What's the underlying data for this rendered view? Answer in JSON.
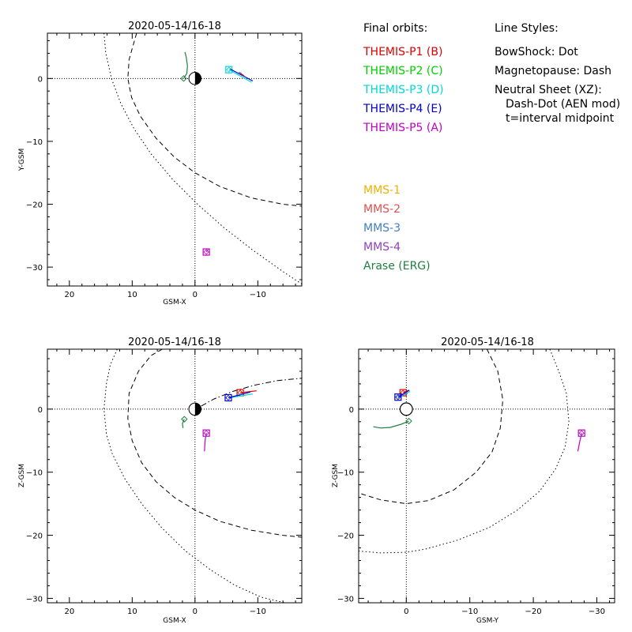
{
  "chart_data": [
    {
      "type": "line",
      "title": "2020-05-14/16-18",
      "xlabel": "GSM-X",
      "ylabel": "Y-GSM",
      "xlim": [
        23.5,
        -17
      ],
      "ylim": [
        -33,
        7.2
      ],
      "xticks": [
        20,
        10,
        0,
        -10
      ],
      "yticks": [
        -30,
        -20,
        -10,
        0
      ],
      "reference_lines": {
        "x": 0,
        "y": 0
      },
      "earth": {
        "x": 0,
        "y": 0,
        "r": 1,
        "night_side": "positive-x"
      },
      "curves": [
        {
          "name": "BowShock",
          "style": "dot",
          "x": [
            14.5,
            14.2,
            13.3,
            11.8,
            9.7,
            7.0,
            3.6,
            -0.4,
            -4.7,
            -9.2,
            -14.0,
            -17.0
          ],
          "y": [
            7.2,
            4.0,
            0,
            -4.0,
            -8.0,
            -12.0,
            -16.0,
            -20.0,
            -23.8,
            -27.3,
            -30.7,
            -32.7
          ]
        },
        {
          "name": "Magnetopause",
          "style": "dash",
          "x": [
            9.3,
            10.5,
            10.7,
            10.1,
            8.7,
            6.2,
            3.3,
            0,
            -4.0,
            -9.0,
            -14.0,
            -17.0
          ],
          "y": [
            7.2,
            3.0,
            0,
            -3.0,
            -6.0,
            -9.5,
            -12.5,
            -15.0,
            -17.2,
            -19.0,
            -20.0,
            -20.3
          ]
        }
      ],
      "series": [
        {
          "name": "THEMIS-P5 (A)",
          "color": "#c000c0",
          "x": [
            -1.8,
            -2.1
          ],
          "y": [
            -27.6,
            -27.2
          ],
          "marker_end": true
        },
        {
          "name": "THEMIS-P3 (D)",
          "color": "#00d8d8",
          "x": [
            -5.4,
            -9.0
          ],
          "y": [
            1.4,
            -0.6
          ],
          "marker_end": true
        },
        {
          "name": "THEMIS-P4 (E)",
          "color": "#0000c8",
          "x": [
            -5.6,
            -9.2
          ],
          "y": [
            1.5,
            -0.4
          ],
          "marker_end": false
        },
        {
          "name": "THEMIS-P1 (B)",
          "color": "#e00000",
          "x": [
            -7.0,
            -7.8
          ],
          "y": [
            1.0,
            0.4
          ],
          "marker_end": false
        },
        {
          "name": "MMS-4",
          "color": "#9040c0",
          "x": [
            -1.8,
            -2.0
          ],
          "y": [
            -27.5,
            -27.3
          ],
          "marker_end": false
        },
        {
          "name": "MMS-3",
          "color": "#4080c0",
          "x": [
            -7.0,
            -7.4
          ],
          "y": [
            1.0,
            0.8
          ],
          "marker_end": false
        },
        {
          "name": "Arase (ERG)",
          "color": "#208040",
          "x": [
            1.8,
            1.3,
            1.2,
            1.4,
            1.6
          ],
          "y": [
            0.0,
            0.8,
            2.0,
            3.4,
            4.2
          ],
          "marker_end": true
        }
      ]
    },
    {
      "type": "line",
      "title": "2020-05-14/16-18",
      "xlabel": "GSM-X",
      "ylabel": "Z-GSM",
      "xlim": [
        23.5,
        -17
      ],
      "ylim": [
        -30.7,
        9.5
      ],
      "xticks": [
        20,
        10,
        0,
        -10
      ],
      "yticks": [
        -30,
        -20,
        -10,
        0
      ],
      "reference_lines": {
        "x": 0,
        "y": 0
      },
      "earth": {
        "x": 0,
        "y": 0,
        "r": 1,
        "night_side": "positive-x"
      },
      "curves": [
        {
          "name": "BowShock",
          "style": "dot",
          "x": [
            12.4,
            13.5,
            14.1,
            14.5,
            14.1,
            13.2,
            11.2,
            8.5,
            5.3,
            1.5,
            -2.5,
            -6.3,
            -10.5,
            -14.3
          ],
          "y": [
            9.5,
            7.0,
            4.0,
            0,
            -4.0,
            -7.0,
            -11.0,
            -15.0,
            -18.8,
            -22.5,
            -25.5,
            -27.9,
            -29.8,
            -30.7
          ]
        },
        {
          "name": "Magnetopause",
          "style": "dash",
          "x": [
            5.2,
            7.0,
            9.0,
            10.5,
            10.7,
            10.0,
            8.5,
            6.2,
            3.3,
            0,
            -4.0,
            -9.0,
            -14.0,
            -17.0
          ],
          "y": [
            9.5,
            8.5,
            6.0,
            2.5,
            -1.5,
            -5.0,
            -8.5,
            -11.5,
            -14.0,
            -16.0,
            -17.8,
            -19.2,
            -20.0,
            -20.3
          ]
        },
        {
          "name": "Neutral Sheet (XZ)",
          "style": "dashdot",
          "x": [
            -1.0,
            -3.0,
            -6.0,
            -9.5,
            -13.0,
            -17.0
          ],
          "y": [
            0.5,
            1.6,
            2.8,
            3.8,
            4.5,
            4.9
          ]
        }
      ],
      "series": [
        {
          "name": "THEMIS-P5 (A)",
          "color": "#c000c0",
          "x": [
            -1.8,
            -1.6,
            -1.5
          ],
          "y": [
            -3.8,
            -5.0,
            -6.7
          ],
          "marker_end": true
        },
        {
          "name": "MMS-4",
          "color": "#9040c0",
          "x": [
            -1.8,
            -1.6
          ],
          "y": [
            -3.8,
            -5.0
          ],
          "marker_end": false
        },
        {
          "name": "THEMIS-P1 (B)",
          "color": "#e00000",
          "x": [
            -7.2,
            -9.8
          ],
          "y": [
            2.6,
            2.9
          ],
          "marker_end": true
        },
        {
          "name": "THEMIS-P3 (D)",
          "color": "#00d8d8",
          "x": [
            -5.5,
            -9.2
          ],
          "y": [
            1.8,
            2.4
          ],
          "marker_end": false
        },
        {
          "name": "THEMIS-P4 (E)",
          "color": "#0000c8",
          "x": [
            -5.3,
            -8.8
          ],
          "y": [
            1.8,
            2.7
          ],
          "marker_end": true
        },
        {
          "name": "MMS-3",
          "color": "#4080c0",
          "x": [
            -7.0,
            -7.6
          ],
          "y": [
            2.3,
            2.5
          ],
          "marker_end": false
        },
        {
          "name": "Arase (ERG)",
          "color": "#208040",
          "x": [
            1.7,
            2.0,
            1.9
          ],
          "y": [
            -1.6,
            -2.3,
            -3.0
          ],
          "marker_end": true
        }
      ]
    },
    {
      "type": "line",
      "title": "2020-05-14/16-18",
      "xlabel": "GSM-Y",
      "ylabel": "Z-GSM",
      "xlim": [
        7.5,
        -32.8
      ],
      "ylim": [
        -30.7,
        9.5
      ],
      "xticks": [
        0,
        -10,
        -20,
        -30
      ],
      "yticks": [
        -30,
        -20,
        -10,
        0
      ],
      "reference_lines": {
        "x": 0,
        "y": 0
      },
      "earth": {
        "x": 0,
        "y": 0,
        "r": 1,
        "night_side": "none"
      },
      "curves": [
        {
          "name": "BowShock",
          "style": "dot",
          "x": [
            -22.6,
            -24.0,
            -25.2,
            -25.6,
            -25.0,
            -23.5,
            -21.0,
            -17.5,
            -13.0,
            -8.0,
            -3.0,
            0,
            4.0,
            7.5
          ],
          "y": [
            9.5,
            6.0,
            2.5,
            -2.0,
            -6.0,
            -9.5,
            -13.0,
            -16.0,
            -18.8,
            -20.8,
            -22.2,
            -22.7,
            -22.8,
            -22.5
          ]
        },
        {
          "name": "Magnetopause",
          "style": "dash",
          "x": [
            -12.7,
            -14.4,
            -15.2,
            -14.8,
            -13.5,
            -11.0,
            -7.5,
            -3.5,
            0,
            4.0,
            7.5
          ],
          "y": [
            9.5,
            6.0,
            1.5,
            -3.0,
            -6.8,
            -10.0,
            -12.8,
            -14.5,
            -15.0,
            -14.4,
            -13.3
          ]
        }
      ],
      "series": [
        {
          "name": "THEMIS-P1 (B)",
          "color": "#e00000",
          "x": [
            0.5,
            -0.4
          ],
          "y": [
            2.6,
            3.0
          ],
          "marker_end": true
        },
        {
          "name": "THEMIS-P3 (D)",
          "color": "#00d8d8",
          "x": [
            1.3,
            -0.6
          ],
          "y": [
            1.8,
            2.8
          ],
          "marker_end": false
        },
        {
          "name": "THEMIS-P4 (E)",
          "color": "#0000c8",
          "x": [
            1.3,
            -0.5
          ],
          "y": [
            1.9,
            3.0
          ],
          "marker_end": true
        },
        {
          "name": "THEMIS-P5 (A)",
          "color": "#c000c0",
          "x": [
            -27.6,
            -27.3,
            -27.0
          ],
          "y": [
            -3.8,
            -5.2,
            -6.7
          ],
          "marker_end": true
        },
        {
          "name": "MMS-4",
          "color": "#9040c0",
          "x": [
            -27.6,
            -27.4
          ],
          "y": [
            -3.8,
            -4.8
          ],
          "marker_end": false
        },
        {
          "name": "MMS-3",
          "color": "#4080c0",
          "x": [
            0.2,
            -0.2
          ],
          "y": [
            2.3,
            2.5
          ],
          "marker_end": false
        },
        {
          "name": "Arase (ERG)",
          "color": "#208040",
          "x": [
            -0.4,
            0.8,
            2.5,
            4.0,
            5.2
          ],
          "y": [
            -1.9,
            -2.4,
            -2.9,
            -3.0,
            -2.8
          ],
          "marker_end": true
        }
      ]
    }
  ],
  "legend": {
    "orbits_title": "Final orbits:",
    "orbits": [
      {
        "label": "THEMIS-P1 (B)",
        "color": "#e00000"
      },
      {
        "label": "THEMIS-P2 (C)",
        "color": "#00d000"
      },
      {
        "label": "THEMIS-P3 (D)",
        "color": "#00d8d8"
      },
      {
        "label": "THEMIS-P4 (E)",
        "color": "#0000c8"
      },
      {
        "label": "THEMIS-P5 (A)",
        "color": "#c000c0"
      }
    ],
    "mms": [
      {
        "label": "MMS-1",
        "color": "#f0b000"
      },
      {
        "label": "MMS-2",
        "color": "#e05050"
      },
      {
        "label": "MMS-3",
        "color": "#4080c0"
      },
      {
        "label": "MMS-4",
        "color": "#9040c0"
      },
      {
        "label": "Arase (ERG)",
        "color": "#208040"
      }
    ],
    "styles_title": "Line Styles:",
    "styles": [
      "BowShock: Dot",
      "Magnetopause: Dash",
      "Neutral Sheet (XZ):",
      "Dash-Dot (AEN mod)",
      "t=interval midpoint"
    ]
  }
}
